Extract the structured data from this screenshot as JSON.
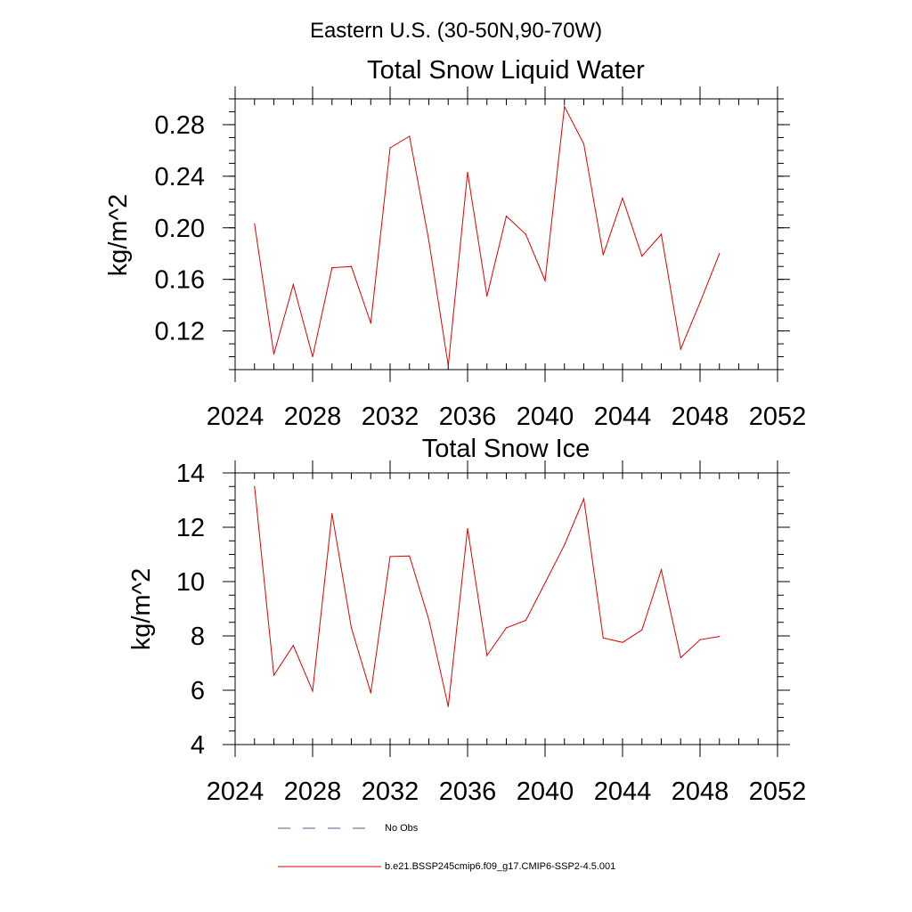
{
  "figure": {
    "suptitle": "Eastern U.S. (30-50N,90-70W)"
  },
  "chart_data": [
    {
      "type": "line",
      "title": "Total Snow Liquid Water",
      "xlabel": "",
      "ylabel": "kg/m^2",
      "xlim": [
        2024,
        2052
      ],
      "ylim": [
        0.09,
        0.3
      ],
      "xticks": [
        2024,
        2028,
        2032,
        2036,
        2040,
        2044,
        2048,
        2052
      ],
      "xtick_labels": [
        "2024",
        "2028",
        "2032",
        "2036",
        "2040",
        "2044",
        "2048",
        "2052"
      ],
      "yticks": [
        0.12,
        0.16,
        0.2,
        0.24,
        0.28
      ],
      "ytick_labels": [
        "0.12",
        "0.16",
        "0.20",
        "0.24",
        "0.28"
      ],
      "y_minor_step": 0.01,
      "x_minor_step": 1,
      "grid": false,
      "series": [
        {
          "color": "#e00000",
          "x": [
            2025,
            2026,
            2027,
            2028,
            2029,
            2030,
            2031,
            2032,
            2033,
            2034,
            2035,
            2036,
            2037,
            2038,
            2039,
            2040,
            2041,
            2042,
            2043,
            2044,
            2045,
            2046,
            2047,
            2048,
            2049
          ],
          "y": [
            0.203,
            0.102,
            0.156,
            0.1,
            0.169,
            0.17,
            0.126,
            0.262,
            0.271,
            0.19,
            0.093,
            0.243,
            0.147,
            0.209,
            0.195,
            0.159,
            0.294,
            0.265,
            0.179,
            0.223,
            0.178,
            0.195,
            0.106,
            0.142,
            0.18
          ]
        }
      ]
    },
    {
      "type": "line",
      "title": "Total Snow Ice",
      "xlabel": "",
      "ylabel": "kg/m^2",
      "xlim": [
        2024,
        2052
      ],
      "ylim": [
        4,
        14
      ],
      "xticks": [
        2024,
        2028,
        2032,
        2036,
        2040,
        2044,
        2048,
        2052
      ],
      "xtick_labels": [
        "2024",
        "2028",
        "2032",
        "2036",
        "2040",
        "2044",
        "2048",
        "2052"
      ],
      "yticks": [
        4,
        6,
        8,
        10,
        12,
        14
      ],
      "ytick_labels": [
        "4",
        "6",
        "8",
        "10",
        "12",
        "14"
      ],
      "y_minor_step": 0.5,
      "x_minor_step": 1,
      "grid": false,
      "series": [
        {
          "color": "#e00000",
          "x": [
            2025,
            2026,
            2027,
            2028,
            2029,
            2030,
            2031,
            2032,
            2033,
            2034,
            2035,
            2036,
            2037,
            2038,
            2039,
            2040,
            2041,
            2042,
            2043,
            2044,
            2045,
            2046,
            2047,
            2048,
            2049
          ],
          "y": [
            13.5,
            6.55,
            7.65,
            5.97,
            12.5,
            8.3,
            5.9,
            10.92,
            10.94,
            8.6,
            5.4,
            11.95,
            7.28,
            8.3,
            8.57,
            9.95,
            11.35,
            13.05,
            7.92,
            7.76,
            8.22,
            10.43,
            7.2,
            7.86,
            7.98
          ]
        }
      ]
    }
  ],
  "legend": {
    "placement": "bottom",
    "items": [
      {
        "label": "No Obs",
        "style": "dashed",
        "color": "#5a5a8a"
      },
      {
        "label": "b.e21.BSSP245cmip6.f09_g17.CMIP6-SSP2-4.5.001",
        "style": "solid",
        "color": "#e00000"
      }
    ]
  }
}
